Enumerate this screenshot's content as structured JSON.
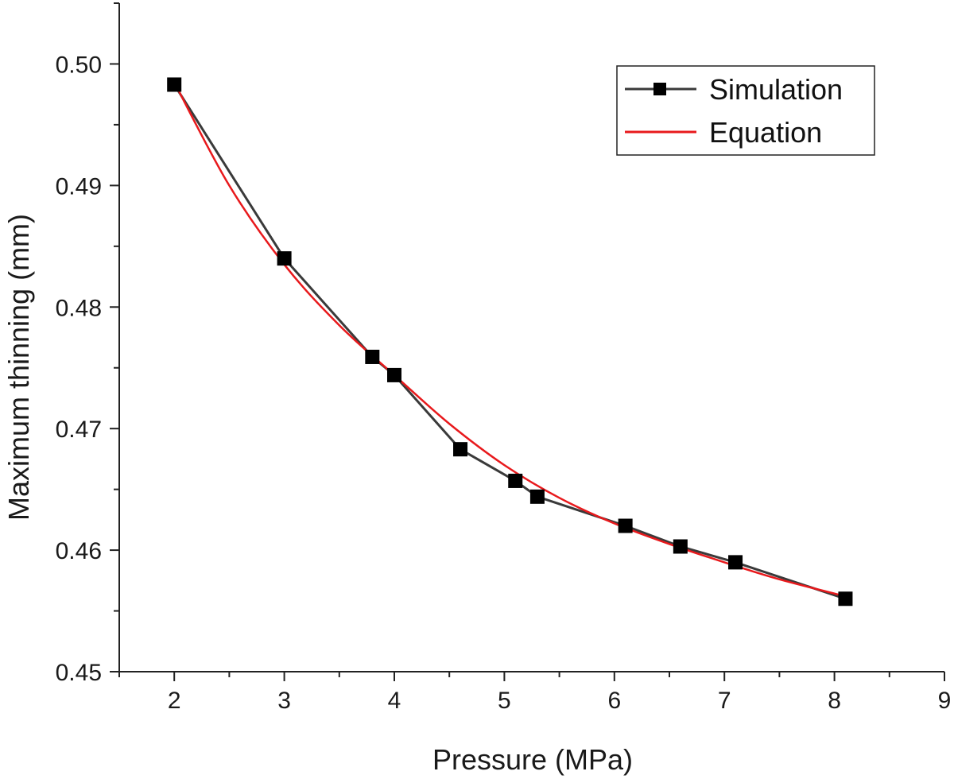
{
  "chart_data": {
    "type": "line",
    "title": "",
    "xlabel": "Pressure (MPa)",
    "ylabel": "Maximum thinning (mm)",
    "xlim": [
      1.5,
      9
    ],
    "ylim": [
      0.45,
      0.505
    ],
    "x_ticks": [
      2,
      3,
      4,
      5,
      6,
      7,
      8,
      9
    ],
    "x_tick_labels": [
      "2",
      "3",
      "4",
      "5",
      "6",
      "7",
      "8",
      "9"
    ],
    "y_ticks": [
      0.45,
      0.46,
      0.47,
      0.48,
      0.49,
      0.5
    ],
    "y_tick_labels": [
      "0.45",
      "0.46",
      "0.47",
      "0.48",
      "0.49",
      "0.50"
    ],
    "grid": false,
    "legend_position": "top-right",
    "series": [
      {
        "name": "Simulation",
        "color": "#3a3a3a",
        "marker": "square",
        "x": [
          2.0,
          3.0,
          3.8,
          4.0,
          4.6,
          5.1,
          5.3,
          6.1,
          6.6,
          7.1,
          8.1
        ],
        "y": [
          0.4983,
          0.484,
          0.4759,
          0.4744,
          0.4683,
          0.4657,
          0.4644,
          0.462,
          0.4603,
          0.459,
          0.456
        ]
      },
      {
        "name": "Equation",
        "color": "#e8191c",
        "marker": "none",
        "x": [
          2.0,
          2.5,
          3.0,
          3.5,
          4.0,
          4.5,
          5.0,
          5.5,
          6.0,
          6.5,
          7.0,
          7.5,
          8.1
        ],
        "y": [
          0.4985,
          0.49,
          0.4835,
          0.4785,
          0.4744,
          0.4704,
          0.467,
          0.4643,
          0.4622,
          0.4605,
          0.459,
          0.4576,
          0.4562
        ]
      }
    ]
  }
}
